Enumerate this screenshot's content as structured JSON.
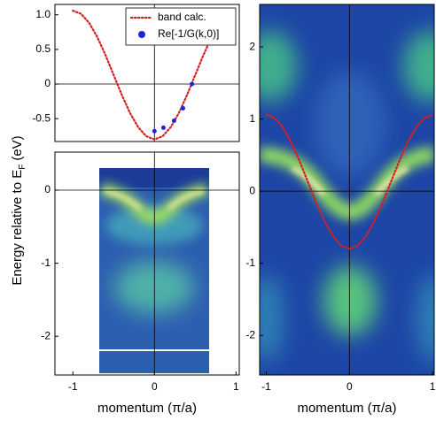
{
  "ylabel": {
    "main": "Energy relative to E",
    "sub": "F",
    "unit": "(eV)"
  },
  "chart_data": [
    {
      "type": "line",
      "xlim": [
        -1.22,
        1.04
      ],
      "ylim": [
        -0.83,
        1.15
      ],
      "yticks": [
        {
          "value": 1,
          "label": "1.0"
        },
        0.5,
        0,
        -0.5
      ],
      "legend": "upper right",
      "series": [
        {
          "name": "band calc.",
          "type": "line",
          "color": "#d42020",
          "x": [
            -1,
            -0.9,
            -0.8,
            -0.7,
            -0.6,
            -0.5,
            -0.4,
            -0.3,
            -0.2,
            -0.1,
            0,
            0.1,
            0.2,
            0.3,
            0.4,
            0.5,
            0.6,
            0.7,
            0.8,
            0.9,
            1
          ],
          "values": [
            1.06,
            1.014,
            0.883,
            0.677,
            0.417,
            0.13,
            -0.157,
            -0.417,
            -0.622,
            -0.754,
            -0.8,
            -0.754,
            -0.622,
            -0.417,
            -0.157,
            0.13,
            0.417,
            0.677,
            0.883,
            1.014,
            1.06
          ]
        },
        {
          "name": "Re[-1/G(k,0)]",
          "type": "scatter",
          "color": "#2020e0",
          "x": [
            0,
            0.11,
            0.24,
            0.35,
            0.46
          ],
          "values": [
            -0.68,
            -0.63,
            -0.53,
            -0.35,
            0
          ]
        }
      ]
    },
    {
      "type": "image",
      "xlim": [
        -1.22,
        1.04
      ],
      "ylim": [
        -2.53,
        0.52
      ],
      "xticks": [
        -1,
        0,
        1
      ],
      "yticks": [
        0,
        -1,
        -2
      ],
      "xlabel": "momentum (π/a)",
      "series": []
    },
    {
      "type": "image",
      "xlim": [
        -1.08,
        1.02
      ],
      "ylim": [
        -2.55,
        2.59
      ],
      "xticks": [
        -1,
        0,
        1
      ],
      "yticks": [
        2,
        1,
        0,
        -1,
        -2
      ],
      "xlabel": "momentum (π/a)",
      "series": [
        {
          "name": "band calc.",
          "type": "line",
          "color": "#d42020",
          "x": [
            -1,
            -0.9,
            -0.8,
            -0.7,
            -0.6,
            -0.5,
            -0.4,
            -0.3,
            -0.2,
            -0.1,
            0,
            0.1,
            0.2,
            0.3,
            0.4,
            0.5,
            0.6,
            0.7,
            0.8,
            0.9,
            1
          ],
          "values": [
            1.06,
            1.014,
            0.883,
            0.677,
            0.417,
            0.13,
            -0.157,
            -0.417,
            -0.622,
            -0.754,
            -0.8,
            -0.754,
            -0.622,
            -0.417,
            -0.157,
            0.13,
            0.417,
            0.677,
            0.883,
            1.014,
            1.06
          ]
        }
      ]
    }
  ]
}
